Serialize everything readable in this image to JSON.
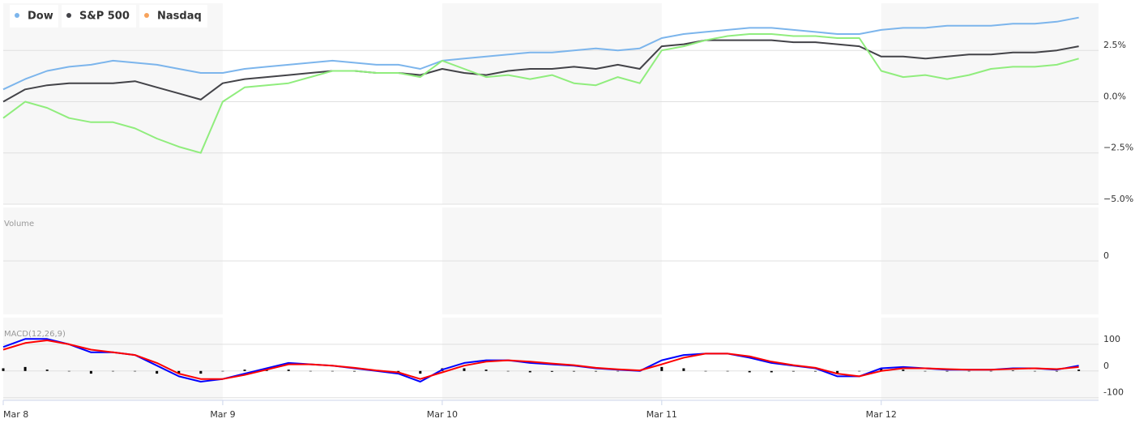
{
  "chart_data": [
    {
      "type": "line",
      "x": [
        0,
        0.1,
        0.2,
        0.3,
        0.4,
        0.5,
        0.6,
        0.7,
        0.8,
        0.9,
        1,
        1.1,
        1.2,
        1.3,
        1.4,
        1.5,
        1.6,
        1.7,
        1.8,
        1.9,
        2,
        2.1,
        2.2,
        2.3,
        2.4,
        2.5,
        2.6,
        2.7,
        2.8,
        2.9,
        3,
        3.1,
        3.2,
        3.3,
        3.4,
        3.5,
        3.6,
        3.7,
        3.8,
        3.9,
        4,
        4.1,
        4.2,
        4.3,
        4.4,
        4.5,
        4.6,
        4.7,
        4.8,
        4.9
      ],
      "series": [
        {
          "name": "Dow",
          "color": "#7cb5ec",
          "legend_color": "#7cb5ec",
          "values": [
            0.6,
            1.1,
            1.5,
            1.7,
            1.8,
            2.0,
            1.9,
            1.8,
            1.6,
            1.4,
            1.4,
            1.6,
            1.7,
            1.8,
            1.9,
            2.0,
            1.9,
            1.8,
            1.8,
            1.6,
            2.0,
            2.1,
            2.2,
            2.3,
            2.4,
            2.4,
            2.5,
            2.6,
            2.5,
            2.6,
            3.1,
            3.3,
            3.4,
            3.5,
            3.6,
            3.6,
            3.5,
            3.4,
            3.3,
            3.3,
            3.5,
            3.6,
            3.6,
            3.7,
            3.7,
            3.7,
            3.8,
            3.8,
            3.9,
            4.1
          ]
        },
        {
          "name": "S&P 500",
          "color": "#434348",
          "legend_color": "#434348",
          "values": [
            0.0,
            0.6,
            0.8,
            0.9,
            0.9,
            0.9,
            1.0,
            0.7,
            0.4,
            0.1,
            0.9,
            1.1,
            1.2,
            1.3,
            1.4,
            1.5,
            1.5,
            1.4,
            1.4,
            1.3,
            1.6,
            1.4,
            1.3,
            1.5,
            1.6,
            1.6,
            1.7,
            1.6,
            1.8,
            1.6,
            2.7,
            2.8,
            3.0,
            3.0,
            3.0,
            3.0,
            2.9,
            2.9,
            2.8,
            2.7,
            2.2,
            2.2,
            2.1,
            2.2,
            2.3,
            2.3,
            2.4,
            2.4,
            2.5,
            2.7
          ]
        },
        {
          "name": "Nasdaq",
          "color": "#90ed7d",
          "legend_color": "#f7a35c",
          "values": [
            -0.8,
            0.0,
            -0.3,
            -0.8,
            -1.0,
            -1.0,
            -1.3,
            -1.8,
            -2.2,
            -2.5,
            0.0,
            0.7,
            0.8,
            0.9,
            1.2,
            1.5,
            1.5,
            1.4,
            1.4,
            1.2,
            2.0,
            1.6,
            1.2,
            1.3,
            1.1,
            1.3,
            0.9,
            0.8,
            1.2,
            0.9,
            2.5,
            2.7,
            3.0,
            3.2,
            3.3,
            3.3,
            3.2,
            3.2,
            3.1,
            3.1,
            1.5,
            1.2,
            1.3,
            1.1,
            1.3,
            1.6,
            1.7,
            1.7,
            1.8,
            2.1
          ]
        }
      ],
      "xlim": [
        0,
        4.99
      ],
      "ylim": [
        -5,
        4.8
      ],
      "yticks": [
        {
          "value": 2.5,
          "label": "2.5%"
        },
        {
          "value": 0,
          "label": "0.0%"
        },
        {
          "value": -2.5,
          "label": "−2.5%"
        },
        {
          "value": -5,
          "label": "−5.0%"
        }
      ],
      "grid": true,
      "legend": "top-left"
    },
    {
      "type": "line",
      "title": "Volume",
      "series": [],
      "xlim": [
        0,
        4.99
      ],
      "ylim": [
        -1,
        1
      ],
      "yticks": [
        0
      ],
      "grid": true
    },
    {
      "type": "line",
      "title": "MACD(12,26,9)",
      "x": [
        0,
        0.1,
        0.2,
        0.3,
        0.4,
        0.5,
        0.6,
        0.7,
        0.8,
        0.9,
        1,
        1.1,
        1.2,
        1.3,
        1.4,
        1.5,
        1.6,
        1.7,
        1.8,
        1.9,
        2,
        2.1,
        2.2,
        2.3,
        2.4,
        2.5,
        2.6,
        2.7,
        2.8,
        2.9,
        3,
        3.1,
        3.2,
        3.3,
        3.4,
        3.5,
        3.6,
        3.7,
        3.8,
        3.9,
        4,
        4.1,
        4.2,
        4.3,
        4.4,
        4.5,
        4.6,
        4.7,
        4.8,
        4.9
      ],
      "series": [
        {
          "type": "bar",
          "color": "#000000",
          "values": [
            10,
            15,
            5,
            0,
            -10,
            0,
            0,
            -10,
            -10,
            -10,
            0,
            5,
            5,
            5,
            0,
            0,
            -2,
            -2,
            -5,
            -10,
            10,
            10,
            5,
            0,
            -5,
            -3,
            -2,
            -2,
            -1,
            -2,
            15,
            10,
            0,
            0,
            -5,
            -5,
            -2,
            -2,
            -10,
            0,
            10,
            5,
            0,
            -2,
            0,
            0,
            2,
            0,
            -2,
            5
          ]
        },
        {
          "type": "line",
          "color": "#0000ff",
          "values": [
            90,
            120,
            120,
            100,
            70,
            70,
            60,
            20,
            -20,
            -40,
            -30,
            -10,
            10,
            30,
            25,
            20,
            10,
            0,
            -10,
            -40,
            5,
            30,
            40,
            40,
            30,
            25,
            20,
            10,
            5,
            0,
            40,
            60,
            65,
            65,
            50,
            30,
            20,
            10,
            -20,
            -20,
            10,
            15,
            10,
            5,
            5,
            5,
            10,
            10,
            5,
            20
          ]
        },
        {
          "type": "line",
          "color": "#ff0000",
          "values": [
            80,
            105,
            115,
            100,
            80,
            70,
            60,
            30,
            -10,
            -30,
            -30,
            -15,
            5,
            25,
            25,
            20,
            12,
            2,
            -5,
            -30,
            -5,
            20,
            35,
            40,
            35,
            28,
            22,
            12,
            6,
            2,
            25,
            50,
            65,
            65,
            55,
            35,
            22,
            12,
            -10,
            -20,
            0,
            10,
            10,
            7,
            5,
            5,
            8,
            10,
            7,
            15
          ]
        }
      ],
      "xlim": [
        0,
        4.99
      ],
      "ylim": [
        -110,
        200
      ],
      "yticks": [
        100,
        0,
        -100
      ],
      "grid": true,
      "xticks": [
        {
          "value": 0,
          "label": "Mar 8"
        },
        {
          "value": 1,
          "label": "Mar 9"
        },
        {
          "value": 2,
          "label": "Mar 10"
        },
        {
          "value": 3,
          "label": "Mar 11"
        },
        {
          "value": 4,
          "label": "Mar 12"
        }
      ]
    }
  ]
}
